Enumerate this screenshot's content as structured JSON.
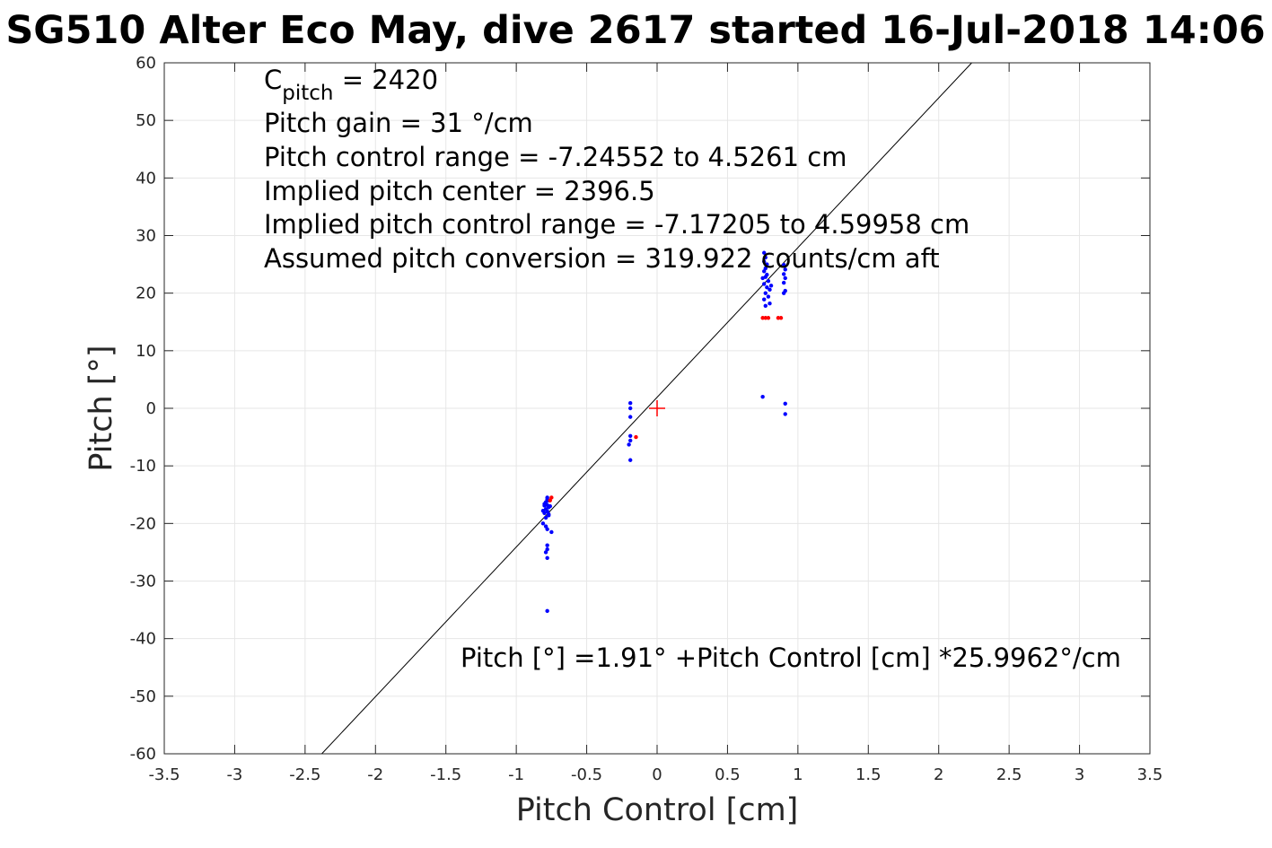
{
  "title": "SG510 Alter Eco May, dive 2617 started 16-Jul-2018 14:06",
  "annotations": {
    "c_pitch_symbol": "C",
    "c_pitch_subscript": "pitch",
    "c_pitch_value": " = 2420",
    "pitch_gain": "Pitch gain = 31 °/cm",
    "pitch_control_range": "Pitch control range = -7.24552 to 4.5261 cm",
    "implied_pitch_center": "Implied pitch center = 2396.5",
    "implied_pitch_control_range": "Implied pitch control range = -7.17205 to 4.59958 cm",
    "assumed_pitch_conversion": "Assumed pitch conversion = 319.922 counts/cm aft",
    "fit_equation": "Pitch [°] =1.91° +Pitch Control [cm] *25.9962°/cm"
  },
  "chart_data": {
    "type": "scatter",
    "xlabel": "Pitch Control [cm]",
    "ylabel": "Pitch [°]",
    "xlim": [
      -3.5,
      3.5
    ],
    "ylim": [
      -60,
      60
    ],
    "x_ticks": [
      -3.5,
      -3,
      -2.5,
      -2,
      -1.5,
      -1,
      -0.5,
      0,
      0.5,
      1,
      1.5,
      2,
      2.5,
      3,
      3.5
    ],
    "y_ticks": [
      -60,
      -50,
      -40,
      -30,
      -20,
      -10,
      0,
      10,
      20,
      30,
      40,
      50,
      60
    ],
    "x_tick_labels": [
      "-3.5",
      "-3",
      "-2.5",
      "-2",
      "-1.5",
      "-1",
      "-0.5",
      "0",
      "0.5",
      "1",
      "1.5",
      "2",
      "2.5",
      "3",
      "3.5"
    ],
    "y_tick_labels": [
      "-60",
      "-50",
      "-40",
      "-30",
      "-20",
      "-10",
      "0",
      "10",
      "20",
      "30",
      "40",
      "50",
      "60"
    ],
    "grid": true,
    "fit_line": {
      "intercept": 1.91,
      "slope": 25.9962,
      "color": "#000000"
    },
    "center_marker": {
      "x": 0,
      "y": 0,
      "color": "#ff0000",
      "shape": "plus"
    },
    "series": [
      {
        "color": "#0000ff",
        "points": [
          [
            -0.78,
            -15.5
          ],
          [
            -0.77,
            -16.0
          ],
          [
            -0.79,
            -16.3
          ],
          [
            -0.78,
            -16.8
          ],
          [
            -0.77,
            -17.2
          ],
          [
            -0.79,
            -17.5
          ],
          [
            -0.78,
            -17.9
          ],
          [
            -0.8,
            -18.2
          ],
          [
            -0.77,
            -18.6
          ],
          [
            -0.79,
            -19.0
          ],
          [
            -0.78,
            -15.8
          ],
          [
            -0.8,
            -16.6
          ],
          [
            -0.76,
            -17.0
          ],
          [
            -0.81,
            -17.8
          ],
          [
            -0.79,
            -20.5
          ],
          [
            -0.78,
            -21.0
          ],
          [
            -0.81,
            -20.0
          ],
          [
            -0.75,
            -21.5
          ],
          [
            -0.78,
            -23.8
          ],
          [
            -0.78,
            -24.5
          ],
          [
            -0.79,
            -25.0
          ],
          [
            -0.78,
            -26.0
          ],
          [
            -0.78,
            -35.2
          ],
          [
            -0.77,
            -18.4
          ],
          [
            -0.8,
            -16.9
          ],
          [
            -0.19,
            0.9
          ],
          [
            -0.19,
            0.0
          ],
          [
            -0.19,
            -1.5
          ],
          [
            -0.19,
            -4.8
          ],
          [
            -0.19,
            -5.6
          ],
          [
            -0.2,
            -6.3
          ],
          [
            -0.19,
            -9.0
          ],
          [
            0.75,
            2.0
          ],
          [
            0.91,
            0.8
          ],
          [
            0.91,
            -1.0
          ],
          [
            0.76,
            27.0
          ],
          [
            0.77,
            26.2
          ],
          [
            0.76,
            25.5
          ],
          [
            0.78,
            25.0
          ],
          [
            0.77,
            24.3
          ],
          [
            0.76,
            23.8
          ],
          [
            0.78,
            23.2
          ],
          [
            0.77,
            22.8
          ],
          [
            0.79,
            22.1
          ],
          [
            0.76,
            21.6
          ],
          [
            0.78,
            21.0
          ],
          [
            0.8,
            20.6
          ],
          [
            0.77,
            20.0
          ],
          [
            0.79,
            19.4
          ],
          [
            0.76,
            18.9
          ],
          [
            0.8,
            18.2
          ],
          [
            0.77,
            17.8
          ],
          [
            0.75,
            22.6
          ],
          [
            0.81,
            21.3
          ],
          [
            0.9,
            24.9
          ],
          [
            0.91,
            24.1
          ],
          [
            0.9,
            23.3
          ],
          [
            0.91,
            22.6
          ],
          [
            0.9,
            21.8
          ],
          [
            0.91,
            20.4
          ],
          [
            0.9,
            20.0
          ]
        ]
      },
      {
        "color": "#ff0000",
        "points": [
          [
            -0.75,
            -15.5
          ],
          [
            -0.76,
            -16.0
          ],
          [
            -0.15,
            -5.0
          ],
          [
            0.75,
            15.7
          ],
          [
            0.77,
            15.7
          ],
          [
            0.79,
            15.7
          ],
          [
            0.86,
            15.7
          ],
          [
            0.88,
            15.7
          ]
        ]
      }
    ]
  }
}
